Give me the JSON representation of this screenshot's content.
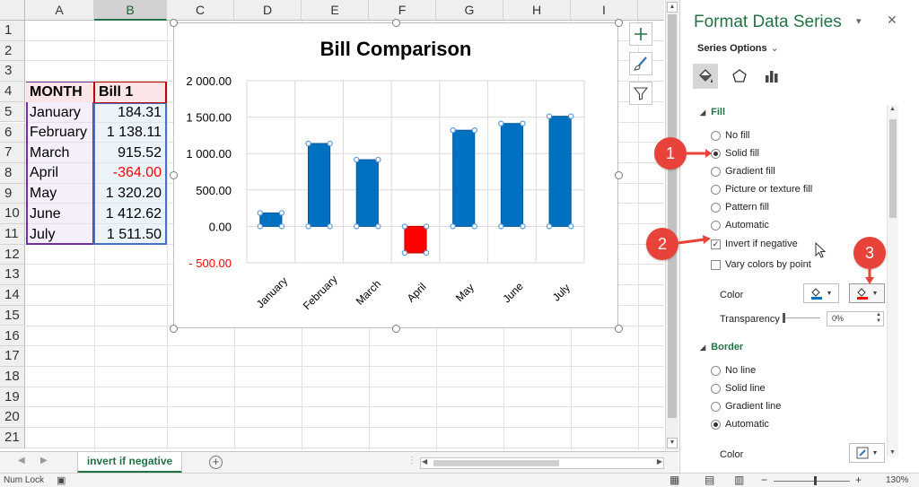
{
  "spreadsheet": {
    "columns": [
      "A",
      "B",
      "C",
      "D",
      "E",
      "F",
      "G",
      "H",
      "I"
    ],
    "rows": [
      "1",
      "2",
      "3",
      "4",
      "5",
      "6",
      "7",
      "8",
      "9",
      "10",
      "11",
      "12",
      "13",
      "14",
      "15",
      "16",
      "17",
      "18",
      "19",
      "20",
      "21"
    ],
    "header": {
      "month": "MONTH",
      "bill": "Bill 1"
    },
    "data": [
      {
        "month": "January",
        "value": "184.31"
      },
      {
        "month": "February",
        "value": "1 138.11"
      },
      {
        "month": "March",
        "value": "915.52"
      },
      {
        "month": "April",
        "value": "-364.00"
      },
      {
        "month": "May",
        "value": "1 320.20"
      },
      {
        "month": "June",
        "value": "1 412.62"
      },
      {
        "month": "July",
        "value": "1 511.50"
      }
    ]
  },
  "chart_data": {
    "type": "bar",
    "title": "Bill Comparison",
    "categories": [
      "January",
      "February",
      "March",
      "April",
      "May",
      "June",
      "July"
    ],
    "series": [
      {
        "values": [
          184.31,
          1138.11,
          915.52,
          -364.0,
          1320.2,
          1412.62,
          1511.5
        ]
      }
    ],
    "ylim": [
      -500,
      2000
    ],
    "yticks": [
      2000,
      1500,
      1000,
      500,
      0,
      -500
    ],
    "ytick_labels": [
      "2 000.00",
      "1 500.00",
      "1 000.00",
      "500.00",
      "0.00",
      "- 500.00"
    ],
    "grid": true,
    "bar_color": "#0070c0",
    "negative_color": "#ff0000"
  },
  "sheet_tabs": {
    "active": "invert if negative",
    "add_label": "+"
  },
  "status": {
    "left": "Num Lock",
    "zoom": "130%",
    "minus": "−",
    "plus": "+"
  },
  "pane": {
    "title": "Format Data Series",
    "dropdown_icon": "▾",
    "close_icon": "✕",
    "series_options": "Series Options",
    "fill": {
      "heading": "Fill",
      "options": [
        "No fill",
        "Solid fill",
        "Gradient fill",
        "Picture or texture fill",
        "Pattern fill",
        "Automatic"
      ],
      "selected": "Solid fill",
      "invert_if_negative": "Invert if negative",
      "vary_colors": "Vary colors by point",
      "color_label": "Color",
      "transparency_label": "Transparency",
      "transparency_value": "0%"
    },
    "border": {
      "heading": "Border",
      "options": [
        "No line",
        "Solid line",
        "Gradient line",
        "Automatic"
      ],
      "selected": "Automatic",
      "color_label": "Color"
    }
  },
  "callouts": [
    "1",
    "2",
    "3"
  ],
  "colors": {
    "accent": "#217346",
    "fill_swatch": "#0070c0",
    "invert_swatch": "#ff0000",
    "callout": "#e8433a"
  }
}
